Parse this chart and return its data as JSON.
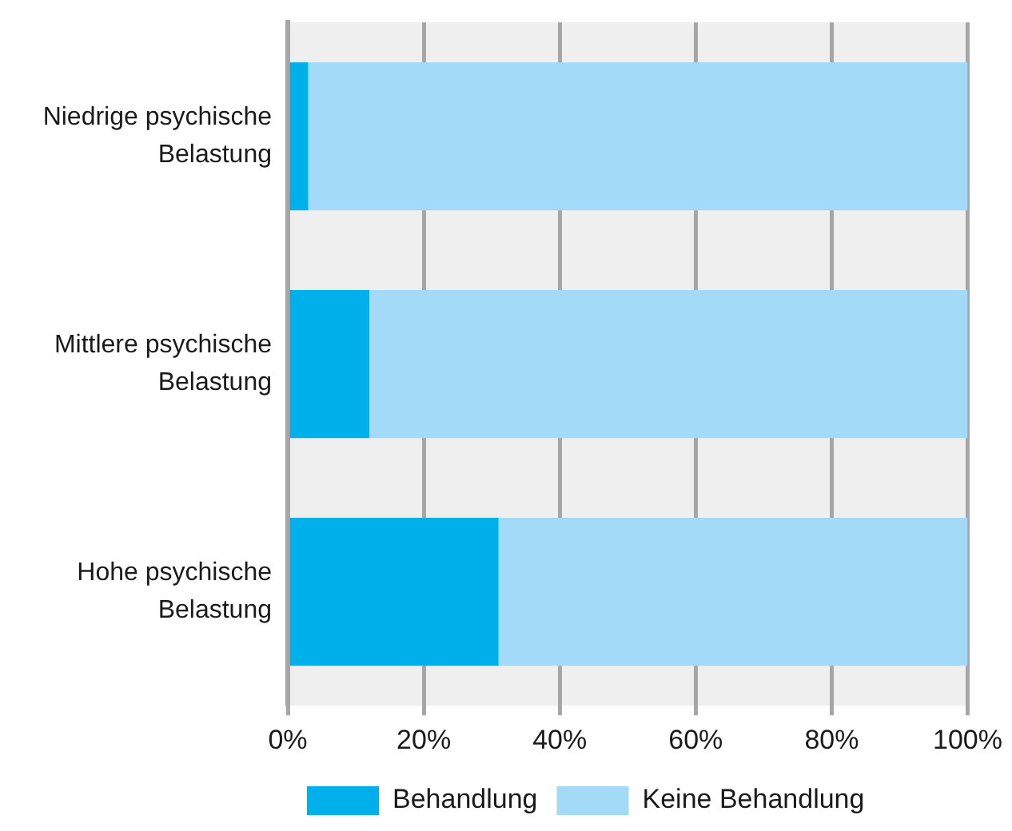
{
  "chart_data": {
    "type": "bar",
    "orientation": "horizontal",
    "stacked": true,
    "categories": [
      "Niedrige psychische Belastung",
      "Mittlere psychische Belastung",
      "Hohe psychische Belastung"
    ],
    "series": [
      {
        "name": "Behandlung",
        "color": "#00b0ea",
        "values": [
          3,
          12,
          31
        ]
      },
      {
        "name": "Keine Behandlung",
        "color": "#a3daf7",
        "values": [
          97,
          88,
          69
        ]
      }
    ],
    "xlim": [
      0,
      100
    ],
    "xticks": [
      {
        "value": 0,
        "label": "0%"
      },
      {
        "value": 20,
        "label": "20%"
      },
      {
        "value": 40,
        "label": "40%"
      },
      {
        "value": 60,
        "label": "60%"
      },
      {
        "value": 80,
        "label": "80%"
      },
      {
        "value": 100,
        "label": "100%"
      }
    ],
    "grid": "x",
    "legend": "bottom"
  }
}
